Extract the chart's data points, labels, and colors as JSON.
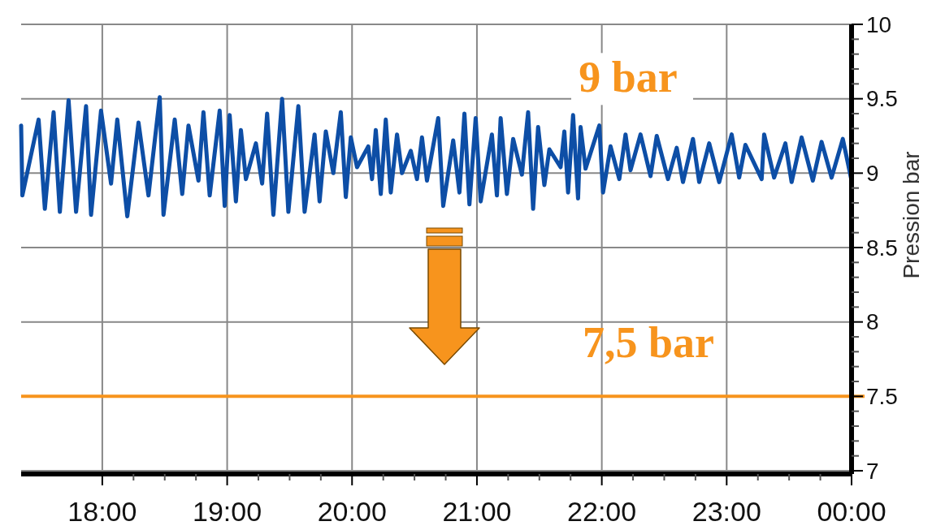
{
  "chart_data": {
    "type": "line",
    "ylabel": "Pression bar",
    "x": [
      17.35,
      17.36,
      17.49,
      17.54,
      17.61,
      17.66,
      17.73,
      17.79,
      17.87,
      17.91,
      17.99,
      18.07,
      18.12,
      18.2,
      18.29,
      18.37,
      18.46,
      18.49,
      18.58,
      18.64,
      18.69,
      18.77,
      18.81,
      18.86,
      18.94,
      18.98,
      19.02,
      19.07,
      19.11,
      19.15,
      19.23,
      19.28,
      19.32,
      19.37,
      19.44,
      19.49,
      19.57,
      19.62,
      19.7,
      19.74,
      19.79,
      19.85,
      19.91,
      19.95,
      19.99,
      20.04,
      20.13,
      20.16,
      20.19,
      20.23,
      20.27,
      20.31,
      20.36,
      20.4,
      20.47,
      20.52,
      20.56,
      20.6,
      20.69,
      20.73,
      20.81,
      20.86,
      20.9,
      20.94,
      20.99,
      21.03,
      21.12,
      21.16,
      21.19,
      21.24,
      21.29,
      21.36,
      21.41,
      21.45,
      21.49,
      21.54,
      21.58,
      21.67,
      21.7,
      21.73,
      21.77,
      21.81,
      21.83,
      21.87,
      21.98,
      22.01,
      22.07,
      22.14,
      22.19,
      22.23,
      22.31,
      22.39,
      22.44,
      22.53,
      22.6,
      22.65,
      22.73,
      22.78,
      22.86,
      22.94,
      23.04,
      23.1,
      23.15,
      23.28,
      23.3,
      23.38,
      23.47,
      23.52,
      23.6,
      23.69,
      23.76,
      23.84,
      23.93,
      24.0
    ],
    "series": [
      {
        "color": "#0d4ea6",
        "values": [
          9.32,
          8.85,
          9.36,
          8.76,
          9.41,
          8.74,
          9.49,
          8.74,
          9.45,
          8.72,
          9.42,
          8.93,
          9.36,
          8.71,
          9.34,
          8.85,
          9.51,
          8.72,
          9.36,
          8.86,
          9.32,
          8.95,
          9.41,
          8.85,
          9.42,
          8.78,
          9.39,
          8.81,
          9.29,
          8.96,
          9.2,
          8.93,
          9.4,
          8.72,
          9.5,
          8.74,
          9.45,
          8.74,
          9.26,
          8.81,
          9.28,
          9.0,
          9.41,
          8.84,
          9.24,
          9.04,
          9.18,
          8.96,
          9.29,
          8.86,
          9.36,
          8.87,
          9.26,
          9.0,
          9.15,
          8.96,
          9.24,
          8.95,
          9.37,
          8.78,
          9.22,
          8.87,
          9.4,
          8.79,
          9.37,
          8.81,
          9.26,
          8.85,
          9.37,
          8.86,
          9.23,
          8.99,
          9.41,
          8.76,
          9.31,
          8.92,
          9.16,
          9.04,
          9.28,
          8.87,
          9.39,
          8.83,
          9.31,
          9.03,
          9.32,
          8.87,
          9.18,
          8.96,
          9.26,
          9.02,
          9.26,
          8.98,
          9.25,
          8.96,
          9.17,
          8.94,
          9.23,
          8.94,
          9.2,
          8.94,
          9.26,
          8.97,
          9.19,
          8.96,
          9.26,
          8.97,
          9.2,
          8.94,
          9.24,
          8.95,
          9.21,
          8.97,
          9.23,
          8.95
        ]
      }
    ],
    "xlim": [
      17.35,
      24
    ],
    "xticks": [
      {
        "value": 18,
        "label": "18:00"
      },
      {
        "value": 19,
        "label": "19:00"
      },
      {
        "value": 20,
        "label": "20:00"
      },
      {
        "value": 21,
        "label": "21:00"
      },
      {
        "value": 22,
        "label": "22:00"
      },
      {
        "value": 23,
        "label": "23:00"
      },
      {
        "value": 24,
        "label": "00:00"
      }
    ],
    "ylim": [
      7,
      10
    ],
    "yticks": [
      7,
      7.5,
      8,
      8.5,
      9,
      9.5,
      10
    ],
    "grid": true,
    "ref_lines": [
      {
        "axis": "y",
        "value": 7.5,
        "label": "7,5 bar",
        "color": "#f7941d"
      }
    ],
    "annotations": [
      {
        "text": "9 bar",
        "y": 9
      }
    ]
  }
}
